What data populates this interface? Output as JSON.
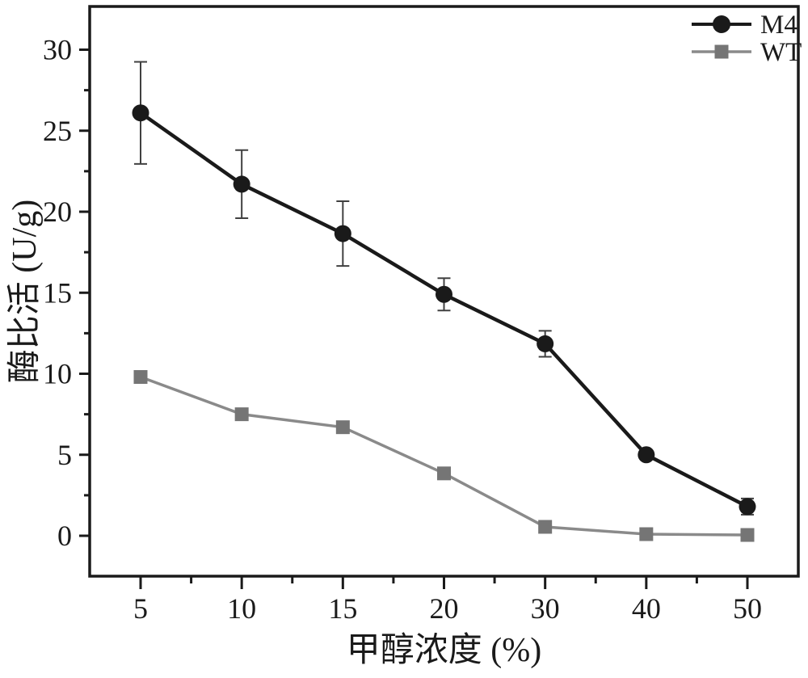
{
  "chart_data": {
    "type": "line",
    "title": "",
    "xlabel": "甲醇浓度 (%)",
    "ylabel": "酶比活 (U/g)",
    "categories": [
      5,
      10,
      15,
      20,
      30,
      40,
      50
    ],
    "x_tick_labels": [
      "5",
      "10",
      "15",
      "20",
      "30",
      "40",
      "50"
    ],
    "y_ticks": [
      0,
      5,
      10,
      15,
      20,
      25,
      30
    ],
    "y_minor_ticks": [
      2.5,
      7.5,
      12.5,
      17.5,
      22.5,
      27.5
    ],
    "ylim": [
      -2.5,
      32.6
    ],
    "grid": false,
    "legend": {
      "position": "top-right"
    },
    "series": [
      {
        "name": "WT",
        "marker": "square",
        "line_color": "#8a8a8a",
        "marker_color": "#757575",
        "values": [
          9.8,
          7.5,
          6.7,
          3.85,
          0.55,
          0.1,
          0.05
        ],
        "errors": [
          0,
          0,
          0,
          0,
          0,
          0,
          0
        ]
      },
      {
        "name": "M4",
        "marker": "circle",
        "line_color": "#1a1a1a",
        "marker_color": "#1a1a1a",
        "values": [
          26.1,
          21.7,
          18.65,
          14.9,
          11.85,
          5.0,
          1.8
        ],
        "errors": [
          3.15,
          2.1,
          2.0,
          1.0,
          0.8,
          0,
          0.5
        ]
      }
    ],
    "colors": {
      "axis": "#1a1a1a",
      "error_bar": "#404040",
      "text": "#1a1a1a",
      "background": "#ffffff"
    }
  }
}
